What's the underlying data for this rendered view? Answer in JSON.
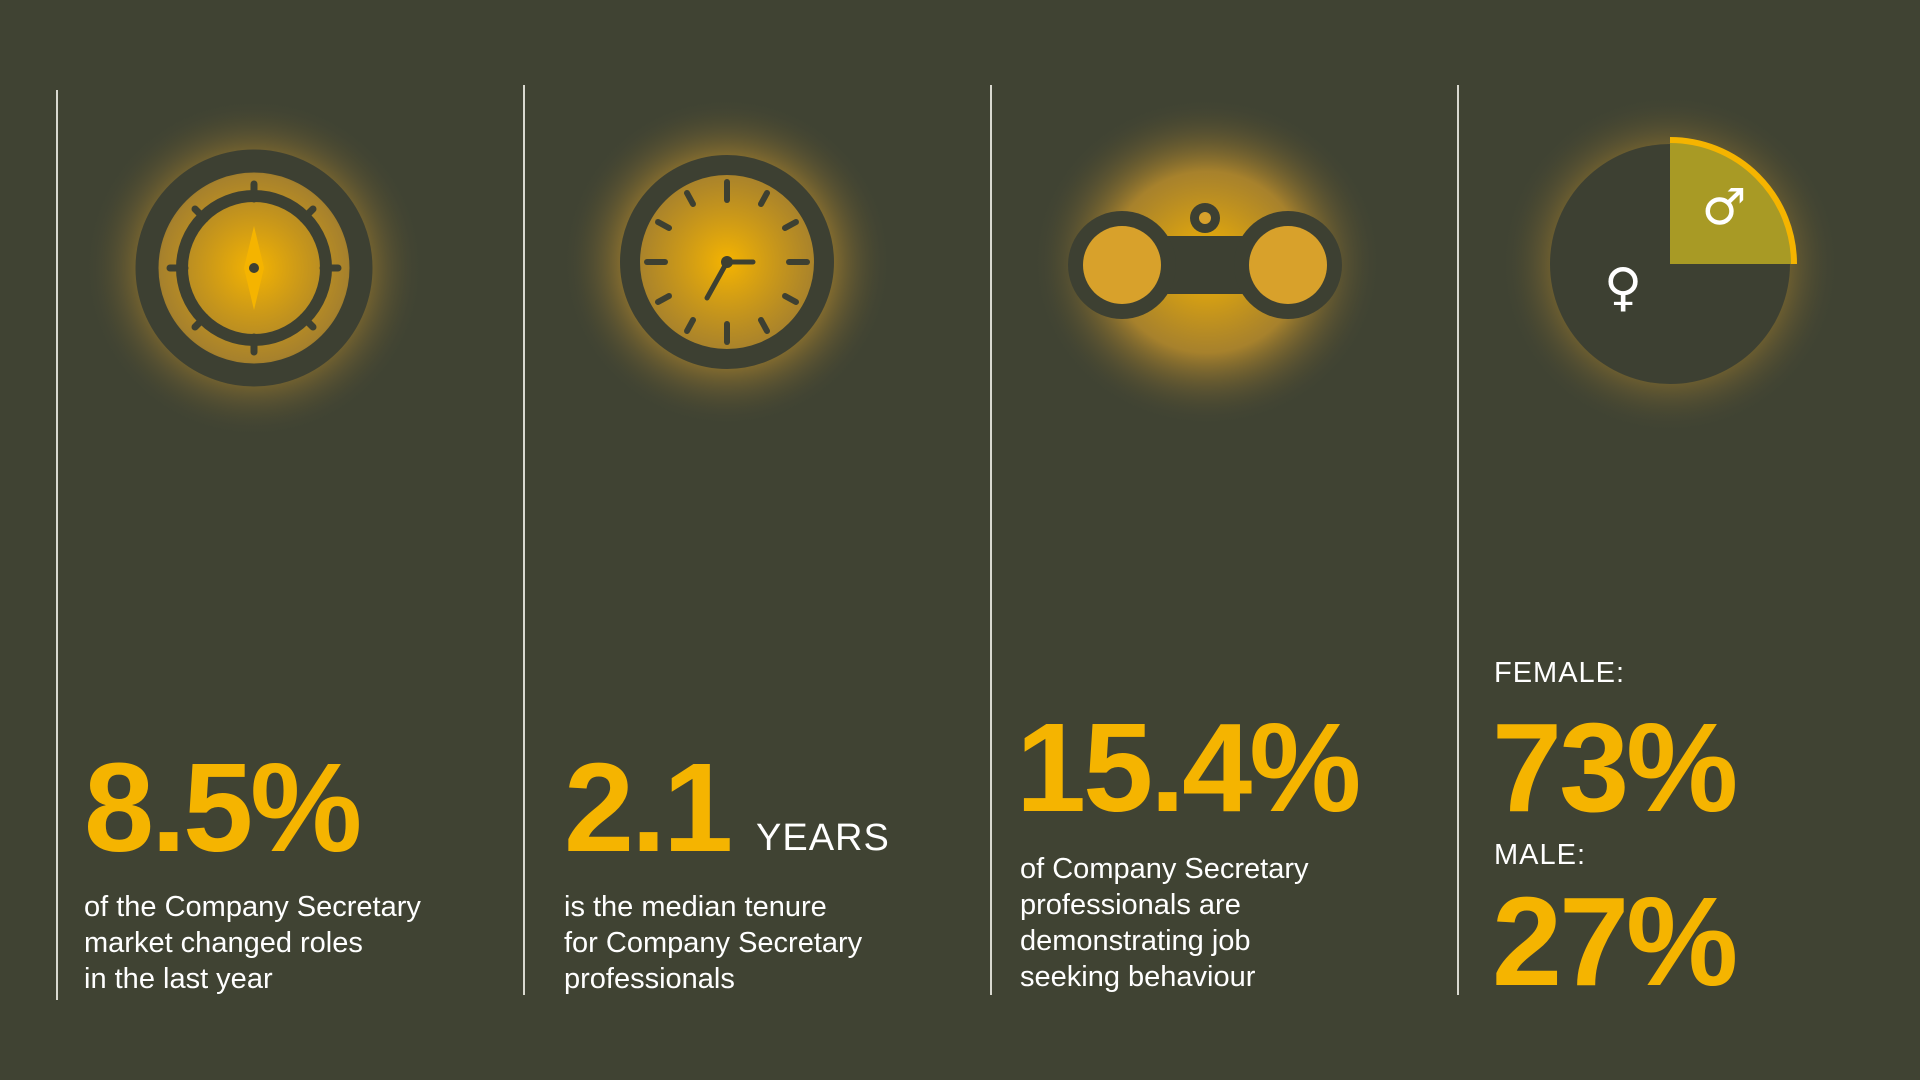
{
  "stats": [
    {
      "value": "8.5%",
      "desc_lines": [
        "of the Company Secretary",
        "market changed roles",
        "in the last year"
      ],
      "icon": "compass-icon"
    },
    {
      "value": "2.1",
      "unit": "YEARS",
      "desc_lines": [
        "is the median tenure",
        "for Company Secretary",
        "professionals"
      ],
      "icon": "clock-icon"
    },
    {
      "value": "15.4%",
      "desc_lines": [
        "of Company Secretary",
        "professionals are",
        "demonstrating job",
        "seeking behaviour"
      ],
      "icon": "binoculars-icon"
    }
  ],
  "gender": {
    "female_label": "FEMALE:",
    "female_value": "73%",
    "male_label": "MALE:",
    "male_value": "27%",
    "female_symbol": "♀",
    "male_symbol": "♂",
    "icon": "gender-pie-icon"
  },
  "colors": {
    "background": "#404333",
    "accent": "#f5b400",
    "icon_dark": "#3d4032",
    "pie_highlight": "#a89a25"
  }
}
